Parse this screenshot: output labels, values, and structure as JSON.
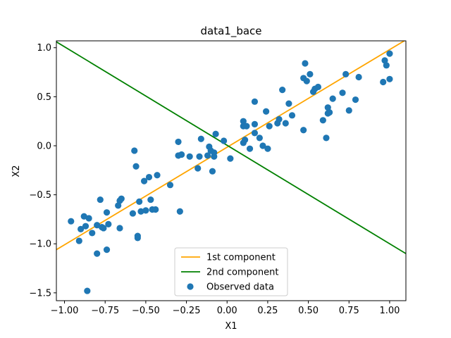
{
  "chart_data": {
    "type": "scatter",
    "title": "data1_bace",
    "xlabel": "X1",
    "ylabel": "X2",
    "xlim": [
      -1.05,
      1.1
    ],
    "ylim": [
      -1.58,
      1.07
    ],
    "xticks": [
      -1.0,
      -0.75,
      -0.5,
      -0.25,
      0.0,
      0.25,
      0.5,
      0.75,
      1.0
    ],
    "xtick_labels": [
      "−1.00",
      "−0.75",
      "−0.50",
      "−0.25",
      "0.00",
      "0.25",
      "0.50",
      "0.75",
      "1.00"
    ],
    "yticks": [
      -1.5,
      -1.0,
      -0.5,
      0.0,
      0.5,
      1.0
    ],
    "ytick_labels": [
      "−1.5",
      "−1.0",
      "−0.5",
      "0.0",
      "0.5",
      "1.0"
    ],
    "grid": false,
    "legend_position": "bottom-center",
    "series": [
      {
        "name": "1st component",
        "type": "line",
        "color": "#ffa500",
        "x": [
          -1.05,
          1.1
        ],
        "y": [
          -1.06,
          1.08
        ]
      },
      {
        "name": "2nd component",
        "type": "line",
        "color": "#008000",
        "x": [
          -1.05,
          1.1
        ],
        "y": [
          1.06,
          -1.1
        ]
      },
      {
        "name": "Observed data",
        "type": "scatter",
        "color": "#1f77b4",
        "points": [
          [
            -0.96,
            -0.77
          ],
          [
            -0.91,
            -0.97
          ],
          [
            -0.9,
            -0.85
          ],
          [
            -0.88,
            -0.72
          ],
          [
            -0.87,
            -0.82
          ],
          [
            -0.86,
            -1.48
          ],
          [
            -0.85,
            -0.74
          ],
          [
            -0.83,
            -0.89
          ],
          [
            -0.8,
            -1.1
          ],
          [
            -0.8,
            -0.81
          ],
          [
            -0.78,
            -0.55
          ],
          [
            -0.77,
            -0.83
          ],
          [
            -0.76,
            -0.84
          ],
          [
            -0.74,
            -0.68
          ],
          [
            -0.74,
            -1.06
          ],
          [
            -0.73,
            -0.8
          ],
          [
            -0.67,
            -0.61
          ],
          [
            -0.66,
            -0.56
          ],
          [
            -0.66,
            -0.84
          ],
          [
            -0.65,
            -0.54
          ],
          [
            -0.58,
            -0.69
          ],
          [
            -0.57,
            -0.05
          ],
          [
            -0.56,
            -0.21
          ],
          [
            -0.55,
            -0.92
          ],
          [
            -0.55,
            -0.94
          ],
          [
            -0.54,
            -0.57
          ],
          [
            -0.53,
            -0.67
          ],
          [
            -0.51,
            -0.36
          ],
          [
            -0.5,
            -0.66
          ],
          [
            -0.48,
            -0.32
          ],
          [
            -0.47,
            -0.55
          ],
          [
            -0.46,
            -0.65
          ],
          [
            -0.44,
            -0.65
          ],
          [
            -0.43,
            -0.3
          ],
          [
            -0.35,
            -0.4
          ],
          [
            -0.3,
            0.04
          ],
          [
            -0.3,
            -0.1
          ],
          [
            -0.29,
            -0.67
          ],
          [
            -0.28,
            -0.09
          ],
          [
            -0.23,
            -0.11
          ],
          [
            -0.18,
            -0.23
          ],
          [
            -0.17,
            -0.11
          ],
          [
            -0.16,
            0.07
          ],
          [
            -0.12,
            -0.1
          ],
          [
            -0.11,
            -0.01
          ],
          [
            -0.1,
            -0.05
          ],
          [
            -0.09,
            -0.26
          ],
          [
            -0.08,
            -0.07
          ],
          [
            -0.08,
            -0.11
          ],
          [
            -0.07,
            0.12
          ],
          [
            -0.02,
            0.05
          ],
          [
            0.02,
            -0.13
          ],
          [
            0.1,
            0.2
          ],
          [
            0.1,
            0.03
          ],
          [
            0.1,
            0.25
          ],
          [
            0.11,
            0.06
          ],
          [
            0.12,
            0.2
          ],
          [
            0.14,
            -0.03
          ],
          [
            0.17,
            0.45
          ],
          [
            0.17,
            0.22
          ],
          [
            0.17,
            0.13
          ],
          [
            0.2,
            0.08
          ],
          [
            0.22,
            0.0
          ],
          [
            0.24,
            0.35
          ],
          [
            0.25,
            -0.03
          ],
          [
            0.26,
            0.2
          ],
          [
            0.31,
            0.23
          ],
          [
            0.32,
            0.27
          ],
          [
            0.34,
            0.57
          ],
          [
            0.36,
            0.23
          ],
          [
            0.38,
            0.43
          ],
          [
            0.4,
            0.31
          ],
          [
            0.47,
            0.16
          ],
          [
            0.47,
            0.69
          ],
          [
            0.48,
            0.84
          ],
          [
            0.49,
            0.66
          ],
          [
            0.51,
            0.73
          ],
          [
            0.53,
            0.55
          ],
          [
            0.54,
            0.58
          ],
          [
            0.56,
            0.6
          ],
          [
            0.59,
            0.26
          ],
          [
            0.61,
            0.08
          ],
          [
            0.62,
            0.39
          ],
          [
            0.62,
            0.33
          ],
          [
            0.63,
            0.34
          ],
          [
            0.65,
            0.48
          ],
          [
            0.71,
            0.54
          ],
          [
            0.73,
            0.73
          ],
          [
            0.75,
            0.36
          ],
          [
            0.79,
            0.47
          ],
          [
            0.81,
            0.7
          ],
          [
            0.96,
            0.65
          ],
          [
            0.97,
            0.87
          ],
          [
            0.98,
            0.82
          ],
          [
            1.0,
            0.94
          ],
          [
            1.0,
            0.68
          ]
        ]
      }
    ]
  }
}
